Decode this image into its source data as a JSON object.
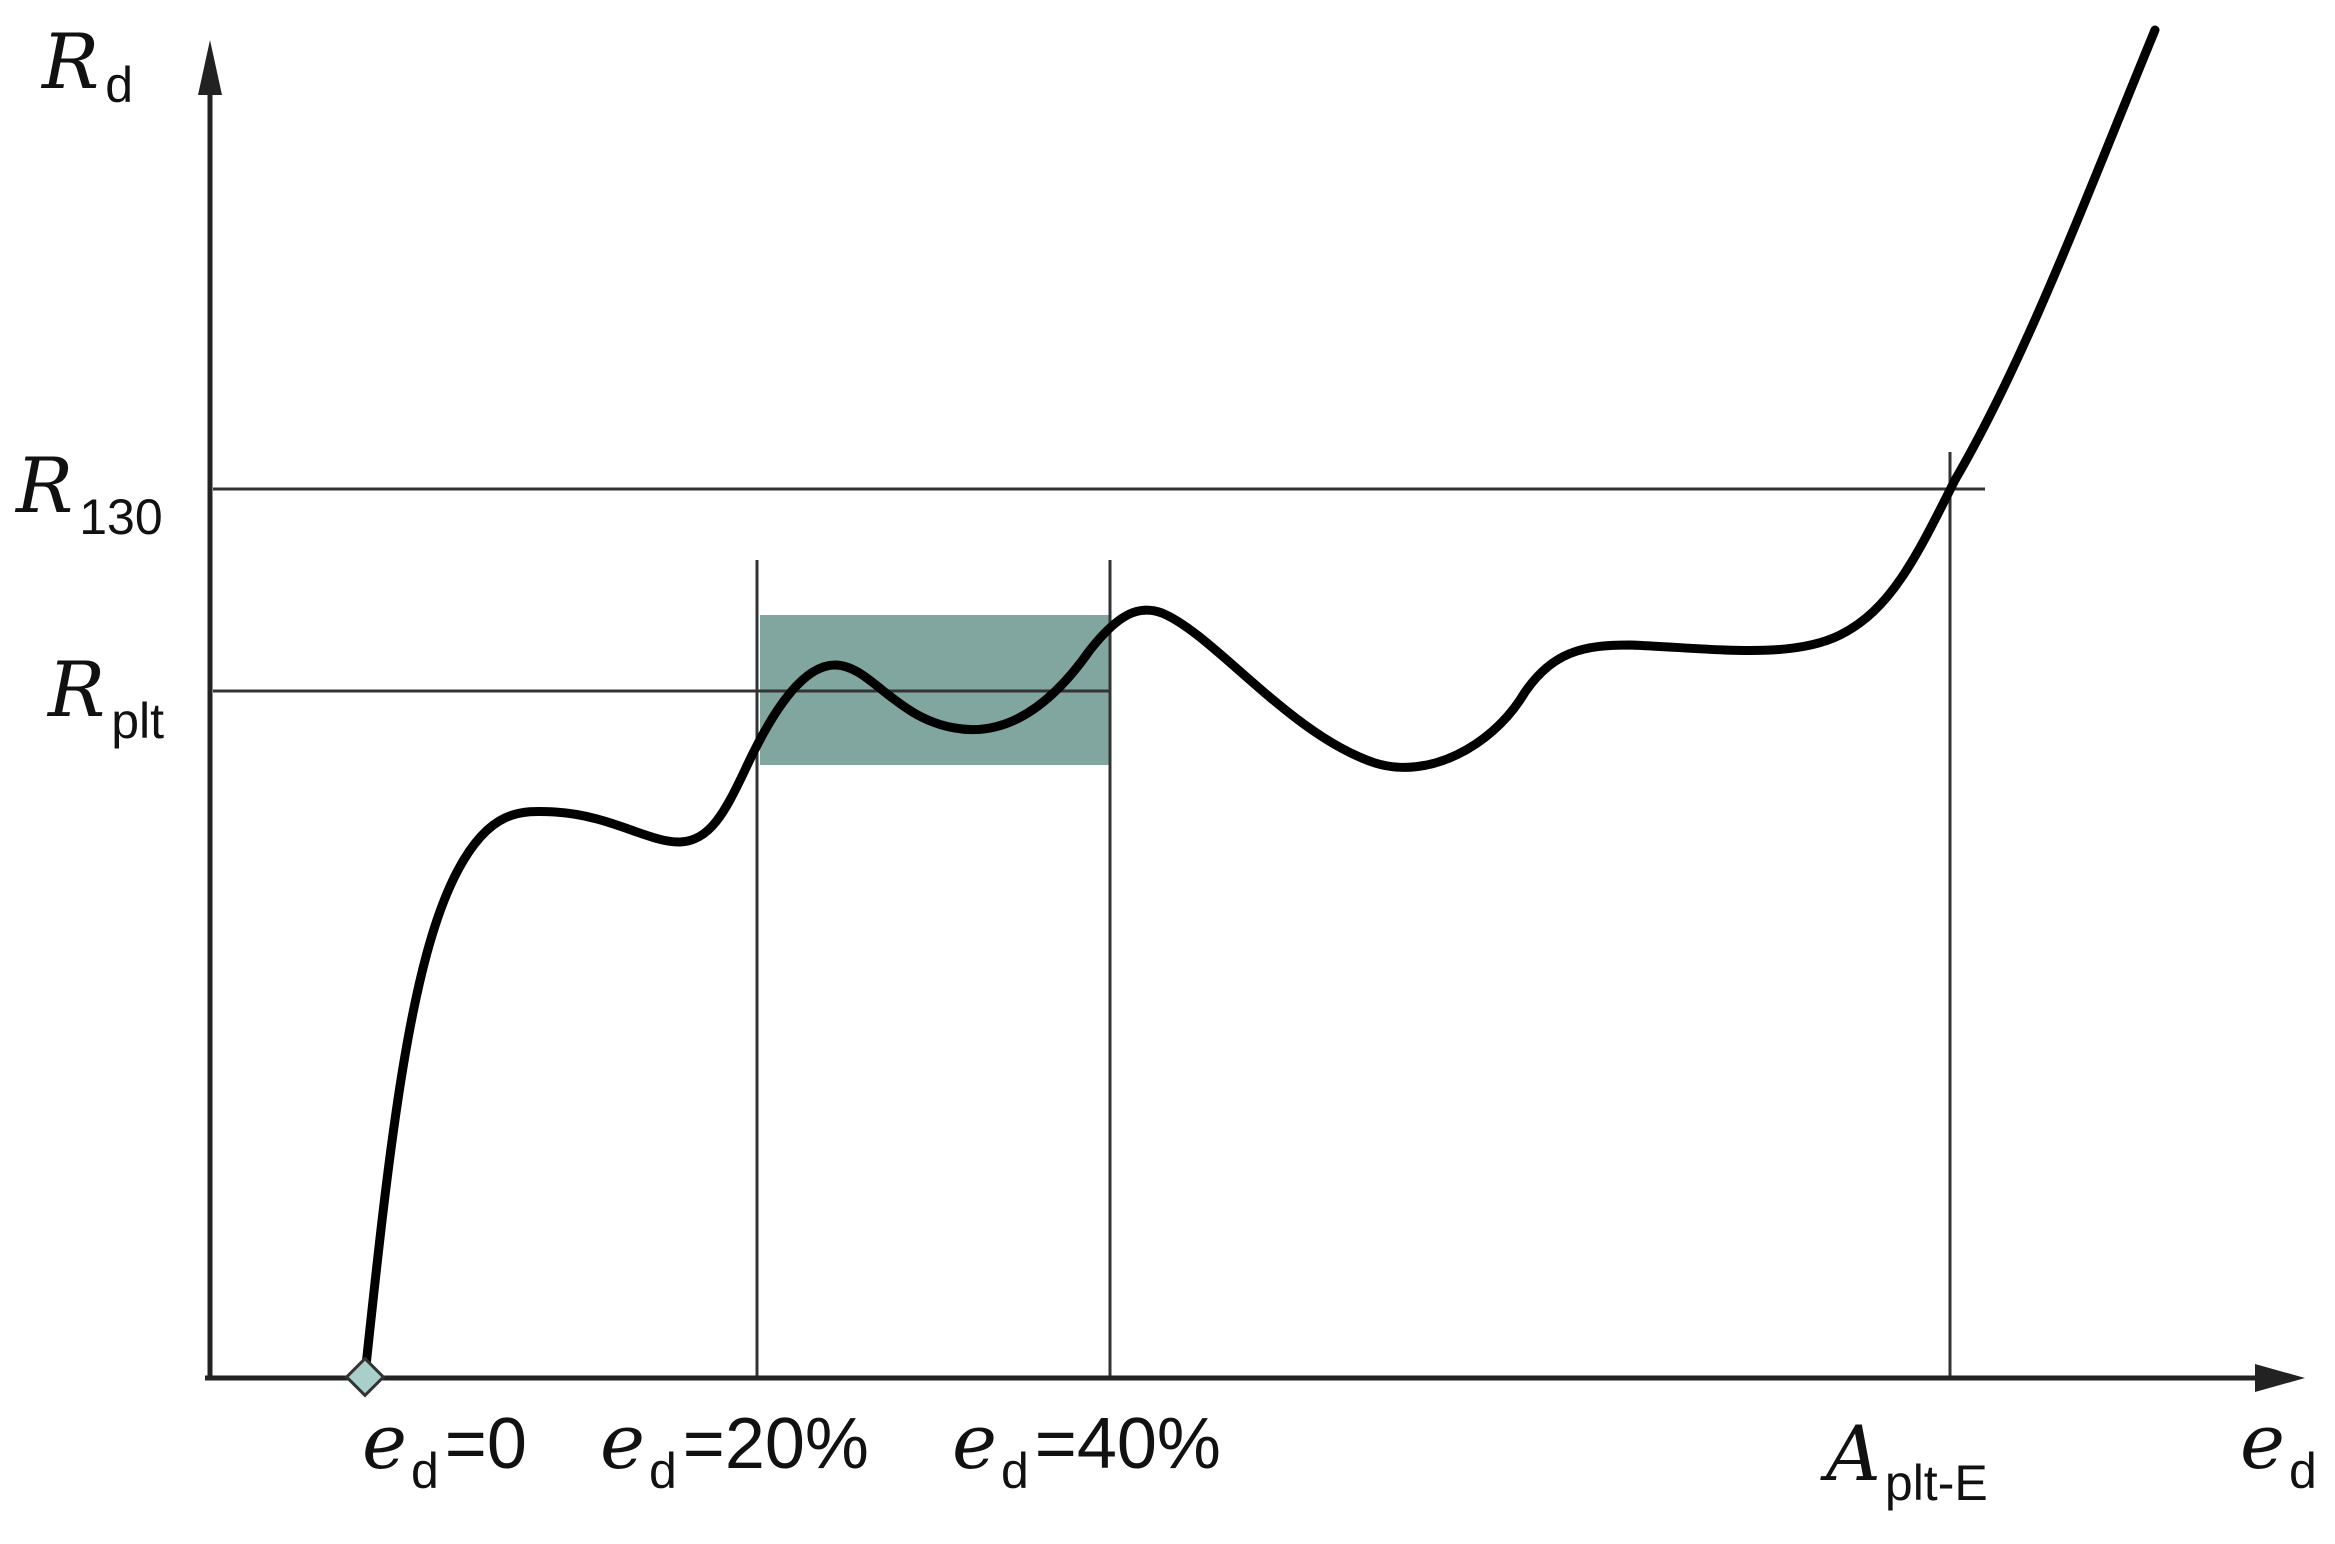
{
  "chart_data": {
    "type": "line",
    "title": "",
    "y_axis": {
      "symbol": "R",
      "subscript": "d"
    },
    "x_axis": {
      "symbol": "e",
      "subscript": "d"
    },
    "reference_lines": {
      "horizontal": [
        {
          "symbol": "R",
          "subscript": "130"
        },
        {
          "symbol": "R",
          "subscript": "plt"
        }
      ]
    },
    "x_ticks": [
      {
        "symbol": "e",
        "subscript": "d",
        "rest": "=0"
      },
      {
        "symbol": "e",
        "subscript": "d",
        "rest": "=20%"
      },
      {
        "symbol": "e",
        "subscript": "d",
        "rest": "=40%"
      },
      {
        "symbol": "A",
        "subscript": "plt-E",
        "rest": ""
      }
    ],
    "highlight_band": {
      "x_from": "e_d=20%",
      "x_to": "e_d=40%",
      "color": "#81a6a0"
    },
    "curve_color": "#000000",
    "start_marker_color": "#a8cfc9"
  }
}
